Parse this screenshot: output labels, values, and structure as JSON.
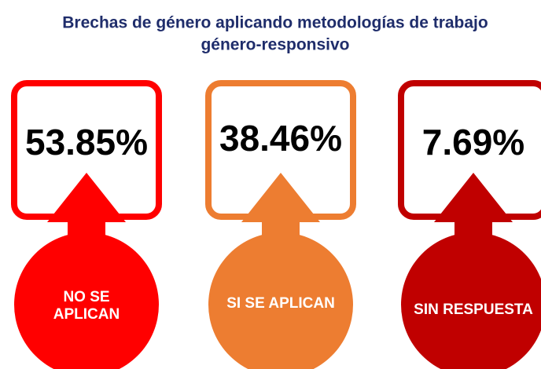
{
  "title": [
    "Brechas de género aplicando metodologías de trabajo",
    "género-responsivo"
  ],
  "items": [
    {
      "value": "53.85%",
      "label": [
        "NO SE",
        "APLICAN"
      ],
      "color": "#ff0000"
    },
    {
      "value": "38.46%",
      "label": [
        "SI SE APLICAN"
      ],
      "color": "#ed7d31"
    },
    {
      "value": "7.69%",
      "label": [
        "SIN RESPUESTA"
      ],
      "color": "#c00000"
    }
  ]
}
